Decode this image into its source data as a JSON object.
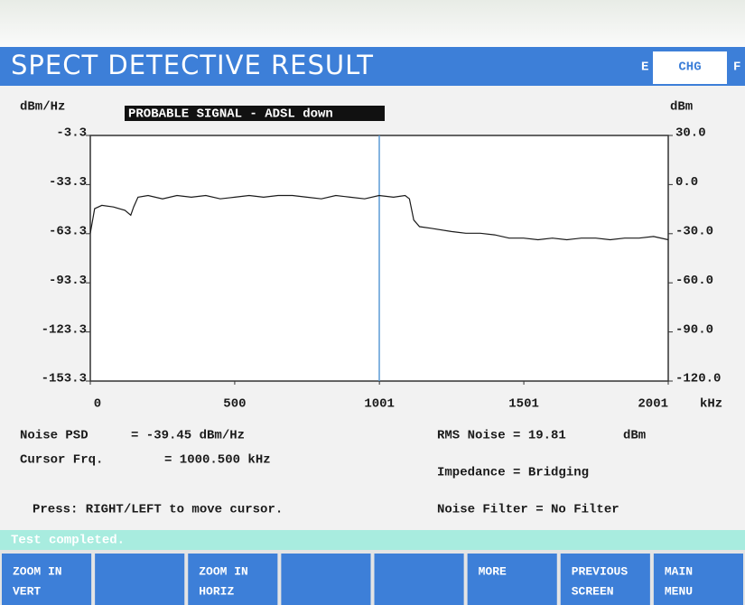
{
  "header": {
    "title": "SPECT DETECTIVE RESULT",
    "tabs": [
      "E",
      "CHG",
      "F"
    ]
  },
  "chart_data": {
    "type": "line",
    "annotation": "PROBABLE SIGNAL -  ADSL down",
    "y_label": "dBm/Hz",
    "y2_label": "dBm",
    "x_label": "kHz",
    "x": [
      0,
      15,
      40,
      80,
      120,
      140,
      150,
      165,
      200,
      250,
      300,
      350,
      400,
      450,
      500,
      550,
      600,
      650,
      700,
      750,
      800,
      850,
      900,
      950,
      1000,
      1050,
      1090,
      1105,
      1120,
      1140,
      1180,
      1250,
      1300,
      1350,
      1400,
      1450,
      1500,
      1550,
      1600,
      1650,
      1700,
      1750,
      1800,
      1850,
      1900,
      1950,
      2001
    ],
    "series": [
      {
        "name": "Noise PSD",
        "color": "#1a1a1a",
        "values": [
          -63,
          -48,
          -46,
          -47,
          -49,
          -52,
          -47,
          -41,
          -40,
          -42,
          -40,
          -41,
          -40,
          -42,
          -41,
          -40,
          -41,
          -40,
          -40,
          -41,
          -42,
          -40,
          -41,
          -42,
          -40,
          -41,
          -40,
          -42,
          -55,
          -59,
          -60,
          -62,
          -63,
          -63,
          -64,
          -66,
          -66,
          -67,
          -66,
          -67,
          -66,
          -66,
          -67,
          -66,
          -66,
          -65,
          -67
        ]
      }
    ],
    "cursor": 1000.5,
    "cursor_color": "#5b9bd5",
    "xlim": [
      0,
      2001
    ],
    "xticks": [
      0,
      500,
      1001,
      1501,
      2001
    ],
    "ylim": [
      -153.3,
      -3.3
    ],
    "yticks": [
      -3.3,
      -33.3,
      -63.3,
      -93.3,
      -123.3,
      -153.3
    ],
    "y2lim": [
      -120,
      30
    ],
    "y2ticks": [
      {
        "value": 30,
        "label": "30.0"
      },
      {
        "value": 0,
        "label": "0.0"
      },
      {
        "value": -30,
        "label": "-30.0"
      },
      {
        "value": -60,
        "label": "-60.0"
      },
      {
        "value": -90,
        "label": "-90.0"
      },
      {
        "value": -120,
        "label": "-120.0"
      }
    ]
  },
  "readouts": {
    "noise_psd": "Noise PSD",
    "noise_psd_value": "= -39.45 dBm/Hz",
    "cursor_frq": "Cursor Frq.",
    "cursor_frq_value": "= 1000.500 kHz",
    "rms_noise": "RMS Noise = 19.81",
    "rms_unit": "dBm",
    "impedance": "Impedance = Bridging",
    "press": "Press: RIGHT/LEFT to move cursor.",
    "noise_filter": "Noise Filter =  No Filter"
  },
  "status": "Test completed.",
  "softkeys": [
    {
      "lines": [
        "ZOOM IN",
        "VERT"
      ]
    },
    {
      "lines": [
        "ZOOM IN",
        "HORIZ"
      ]
    },
    {
      "lines": [
        "MORE"
      ]
    },
    {
      "lines": [
        "PREVIOUS",
        "SCREEN"
      ]
    },
    {
      "lines": [
        "MAIN",
        "MENU"
      ]
    }
  ]
}
